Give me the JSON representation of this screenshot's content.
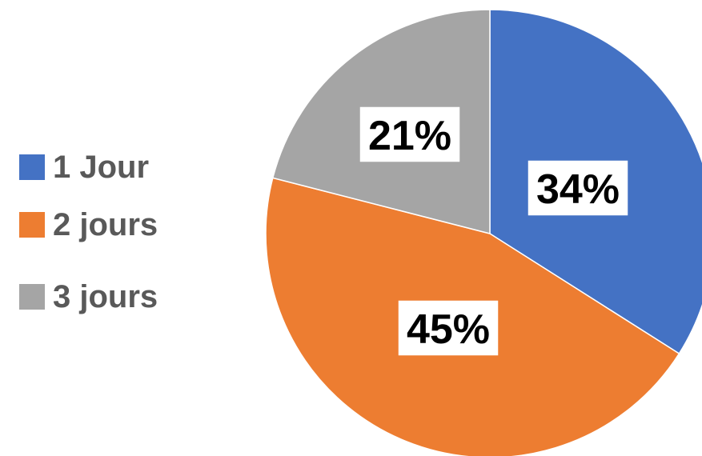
{
  "chart_data": {
    "type": "pie",
    "categories": [
      "1 Jour",
      "2 jours",
      "3 jours"
    ],
    "values": [
      34,
      45,
      21
    ],
    "data_labels": [
      "34%",
      "45%",
      "21%"
    ],
    "colors": [
      "#4472C4",
      "#ED7D31",
      "#A5A5A5"
    ],
    "legend_position": "left"
  }
}
